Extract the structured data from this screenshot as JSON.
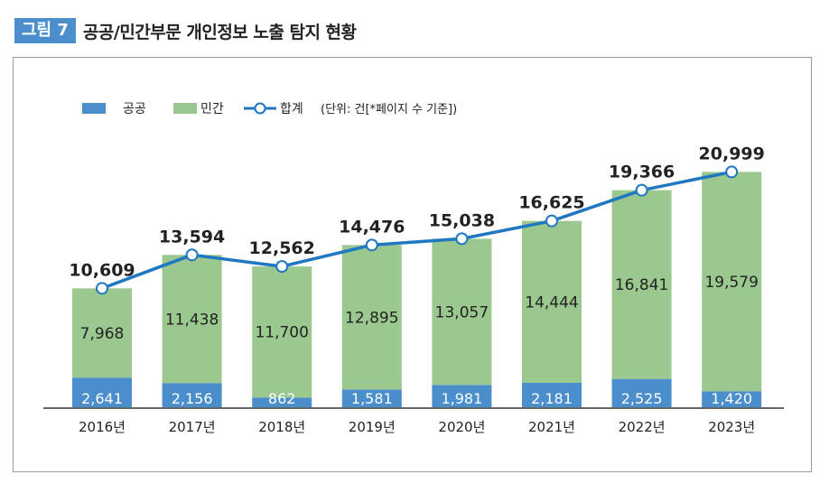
{
  "figure": {
    "badge": "그림 7",
    "title": "공공/민간부문 개인정보 노출 탐지 현황"
  },
  "legend": {
    "public": "공공",
    "private": "민간",
    "total": "합계",
    "unit": "(단위: 건[*페이지 수 기준])"
  },
  "colors": {
    "public": "#4a8fcb",
    "private": "#9ac88f",
    "total": "#1f78c1"
  },
  "chart_data": {
    "type": "bar",
    "stacked": true,
    "categories": [
      "2016년",
      "2017년",
      "2018년",
      "2019년",
      "2020년",
      "2021년",
      "2022년",
      "2023년"
    ],
    "series": [
      {
        "name": "공공",
        "type": "bar",
        "values": [
          2641,
          2156,
          862,
          1581,
          1981,
          2181,
          2525,
          1420
        ]
      },
      {
        "name": "민간",
        "type": "bar",
        "values": [
          7968,
          11438,
          11700,
          12895,
          13057,
          14444,
          16841,
          19579
        ]
      },
      {
        "name": "합계",
        "type": "line",
        "values": [
          10609,
          13594,
          12562,
          14476,
          15038,
          16625,
          19366,
          20999
        ]
      }
    ],
    "legend_position": "top-left",
    "grid": false
  }
}
